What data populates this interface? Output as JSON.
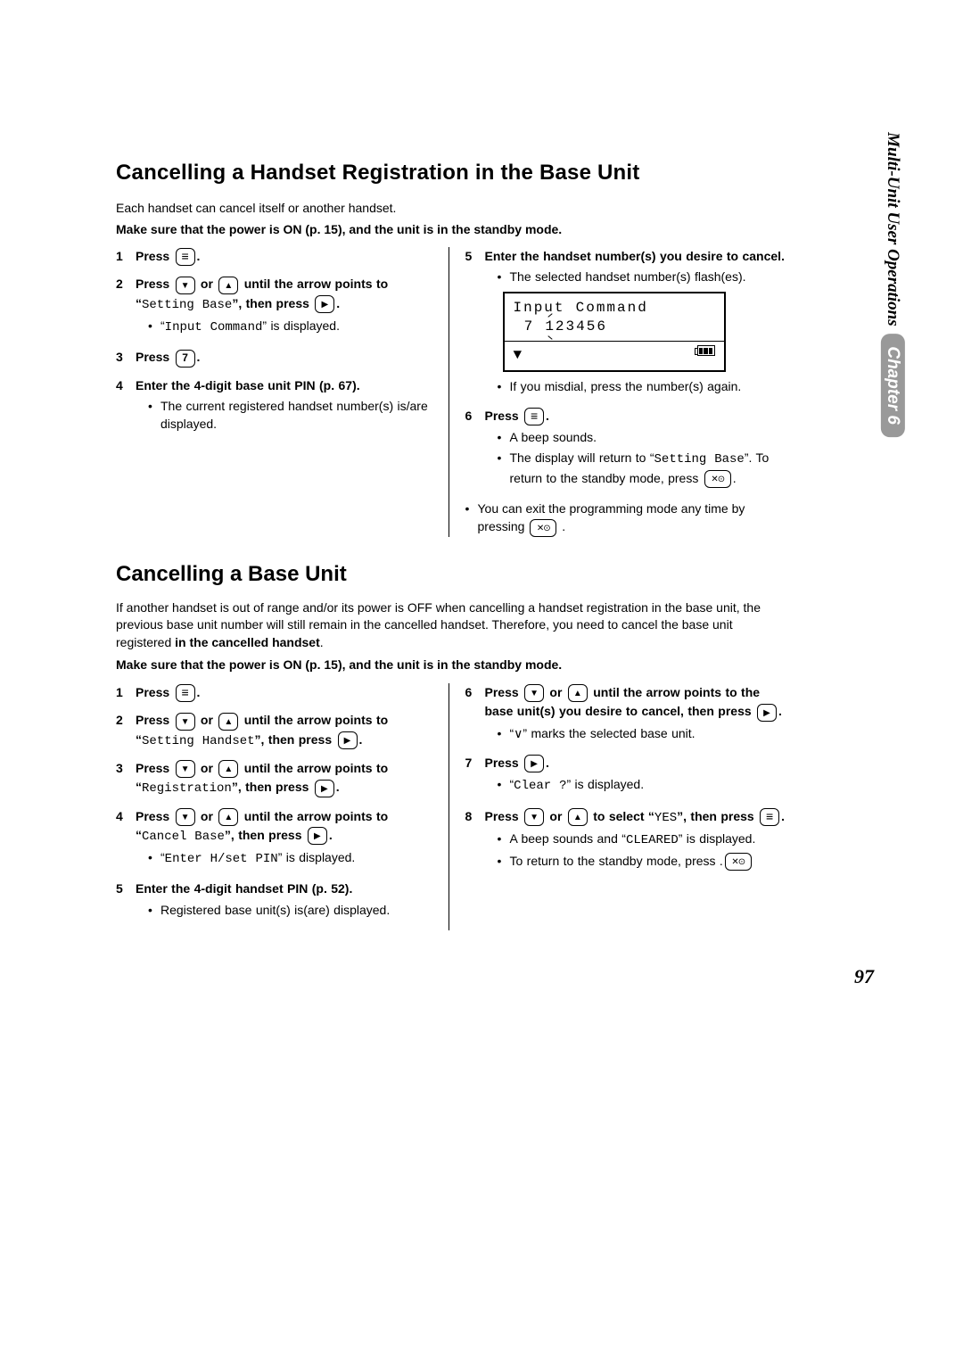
{
  "section1": {
    "title": "Cancelling a Handset Registration in the Base Unit",
    "intro": "Each handset can cancel itself or another handset.",
    "intro_bold": "Make sure that the power is ON (p. 15), and the unit is in the standby mode.",
    "steps_left": [
      {
        "num": "1",
        "bold": "Press ",
        "icon": "menu",
        "bold2": "."
      },
      {
        "num": "2",
        "bold": "Press ",
        "icon": "down",
        "bold_mid": " or ",
        "icon2": "up",
        "bold2": " until the arrow points to “",
        "mono": "Setting Base",
        "bold3": "”, then press ",
        "icon3": "right",
        "bold4": ".",
        "subs": [
          {
            "pre": "“",
            "mono": "Input Command",
            "post": "” is displayed."
          }
        ]
      },
      {
        "num": "3",
        "bold": "Press ",
        "icon": "seven",
        "bold2": "."
      },
      {
        "num": "4",
        "bold": "Enter the 4-digit base unit PIN (p. 67).",
        "subs": [
          {
            "text": "The current registered handset number(s) is/are displayed."
          }
        ]
      }
    ],
    "steps_right": [
      {
        "num": "5",
        "bold": "Enter the handset number(s) you desire to cancel.",
        "subs": [
          {
            "text": "The selected handset number(s) flash(es)."
          }
        ],
        "display": {
          "line1": "Input Command",
          "line2": "7 123456"
        },
        "subs2": [
          {
            "text": "If you misdial, press the number(s) again."
          }
        ]
      },
      {
        "num": "6",
        "bold": "Press ",
        "icon": "menu",
        "bold2": ".",
        "subs": [
          {
            "text": "A beep sounds."
          },
          {
            "pre": "The display will return to “",
            "mono": "Setting Base",
            "post": "”. To return to the standby mode, press ",
            "icon": "power",
            "post2": "."
          }
        ]
      }
    ],
    "footer": {
      "pre": "You can exit the programming mode any time by pressing ",
      "icon": "power",
      "post": "."
    }
  },
  "section2": {
    "title": "Cancelling a Base Unit",
    "intro": "If another handset is out of range and/or its power is OFF when cancelling a handset registration in the base unit, the previous base unit number will still remain in the cancelled handset. Therefore, you need to cancel the base unit registered ",
    "intro_bold_inline": "in the cancelled handset",
    "intro_post": ".",
    "intro_bold": "Make sure that the power is ON (p. 15), and the unit is in the standby mode.",
    "steps_left": [
      {
        "num": "1",
        "bold": "Press ",
        "icon": "menu",
        "bold2": "."
      },
      {
        "num": "2",
        "bold": "Press ",
        "icon": "down",
        "bold_mid": " or ",
        "icon2": "up",
        "bold2": " until the arrow points to “",
        "mono": "Setting Handset",
        "bold3": "”, then press ",
        "icon3": "right",
        "bold4": "."
      },
      {
        "num": "3",
        "bold": "Press ",
        "icon": "down",
        "bold_mid": " or ",
        "icon2": "up",
        "bold2": " until the arrow points to “",
        "mono": "Registration",
        "bold3": "”, then press ",
        "icon3": "right",
        "bold4": "."
      },
      {
        "num": "4",
        "bold": "Press ",
        "icon": "down",
        "bold_mid": " or ",
        "icon2": "up",
        "bold2": " until the arrow points to “",
        "mono": "Cancel Base",
        "bold3": "”, then press ",
        "icon3": "right",
        "bold4": ".",
        "subs": [
          {
            "pre": "“",
            "mono": "Enter H/set PIN",
            "post": "” is displayed."
          }
        ]
      },
      {
        "num": "5",
        "bold": "Enter the 4-digit handset PIN (p. 52).",
        "subs": [
          {
            "text": "Registered base unit(s) is(are) displayed."
          }
        ]
      }
    ],
    "steps_right": [
      {
        "num": "6",
        "bold": "Press ",
        "icon": "down",
        "bold_mid": " or ",
        "icon2": "up",
        "bold2": " until the arrow points to the base unit(s) you desire to cancel, then press ",
        "icon3": "right",
        "bold4": ".",
        "subs": [
          {
            "text": "“∨” marks the selected base unit."
          }
        ]
      },
      {
        "num": "7",
        "bold": "Press ",
        "icon": "right",
        "bold2": ".",
        "subs": [
          {
            "pre": "“",
            "mono": "Clear ?",
            "post": "” is displayed."
          }
        ]
      },
      {
        "num": "8",
        "bold": "Press ",
        "icon": "down",
        "bold_mid": " or ",
        "icon2": "up",
        "bold2": " to select “",
        "mono": "YES",
        "bold3": "”, then press ",
        "icon4": "menu",
        "bold4": ".",
        "subs": [
          {
            "pre": "A beep sounds and “",
            "mono": "CLEARED",
            "post": "” is displayed."
          },
          {
            "pre": "To return to the standby mode, press ",
            "icon": "power",
            "post": "."
          }
        ]
      }
    ]
  },
  "side": {
    "text": "Multi-Unit User Operations",
    "chapter": "Chapter 6"
  },
  "page": "97"
}
